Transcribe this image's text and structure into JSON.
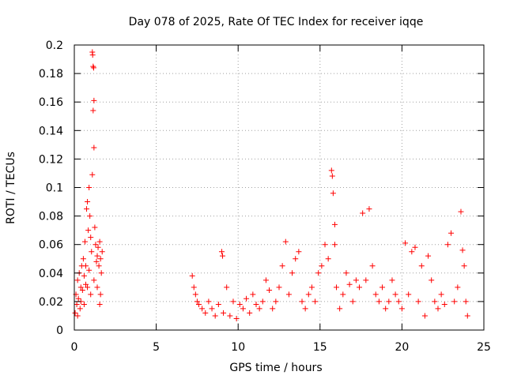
{
  "chart_data": {
    "type": "scatter",
    "title": "Day 078 of 2025, Rate Of TEC Index for receiver iqqe",
    "xlabel": "GPS time / hours",
    "ylabel": "ROTI / TECUs",
    "xlim": [
      0,
      25
    ],
    "ylim": [
      0,
      0.2
    ],
    "x_ticks": [
      "0",
      "5",
      "10",
      "15",
      "20",
      "25"
    ],
    "y_ticks": [
      "0",
      "0.02",
      "0.04",
      "0.06",
      "0.08",
      "0.1",
      "0.12",
      "0.14",
      "0.16",
      "0.18",
      "0.2"
    ],
    "grid": true,
    "marker": "plus",
    "color": "#ff0000",
    "series": [
      {
        "points": [
          [
            0.05,
            0.012
          ],
          [
            0.1,
            0.025
          ],
          [
            0.15,
            0.018
          ],
          [
            0.2,
            0.035
          ],
          [
            0.25,
            0.022
          ],
          [
            0.3,
            0.04
          ],
          [
            0.35,
            0.015
          ],
          [
            0.4,
            0.03
          ],
          [
            0.45,
            0.045
          ],
          [
            0.5,
            0.028
          ],
          [
            0.55,
            0.05
          ],
          [
            0.6,
            0.038
          ],
          [
            0.65,
            0.062
          ],
          [
            0.7,
            0.045
          ],
          [
            0.75,
            0.085
          ],
          [
            0.8,
            0.09
          ],
          [
            0.85,
            0.07
          ],
          [
            0.9,
            0.1
          ],
          [
            0.95,
            0.08
          ],
          [
            1.0,
            0.065
          ],
          [
            1.05,
            0.055
          ],
          [
            1.1,
            0.195
          ],
          [
            1.12,
            0.193
          ],
          [
            1.15,
            0.185
          ],
          [
            1.18,
            0.184
          ],
          [
            1.2,
            0.161
          ],
          [
            1.15,
            0.154
          ],
          [
            1.2,
            0.128
          ],
          [
            1.1,
            0.109
          ],
          [
            1.25,
            0.072
          ],
          [
            1.3,
            0.06
          ],
          [
            1.35,
            0.048
          ],
          [
            1.4,
            0.052
          ],
          [
            1.45,
            0.058
          ],
          [
            1.5,
            0.045
          ],
          [
            1.55,
            0.062
          ],
          [
            1.6,
            0.05
          ],
          [
            1.65,
            0.04
          ],
          [
            1.7,
            0.055
          ],
          [
            1.55,
            0.018
          ],
          [
            0.2,
            0.01
          ],
          [
            0.4,
            0.02
          ],
          [
            0.6,
            0.018
          ],
          [
            0.8,
            0.03
          ],
          [
            1.0,
            0.025
          ],
          [
            1.2,
            0.035
          ],
          [
            1.4,
            0.03
          ],
          [
            1.6,
            0.025
          ],
          [
            0.9,
            0.042
          ],
          [
            0.7,
            0.032
          ],
          [
            7.2,
            0.038
          ],
          [
            7.3,
            0.03
          ],
          [
            7.4,
            0.025
          ],
          [
            7.5,
            0.02
          ],
          [
            7.6,
            0.018
          ],
          [
            7.8,
            0.015
          ],
          [
            8.0,
            0.012
          ],
          [
            8.2,
            0.02
          ],
          [
            8.4,
            0.015
          ],
          [
            8.6,
            0.01
          ],
          [
            8.8,
            0.018
          ],
          [
            9.0,
            0.055
          ],
          [
            9.05,
            0.052
          ],
          [
            9.1,
            0.012
          ],
          [
            9.3,
            0.03
          ],
          [
            9.5,
            0.01
          ],
          [
            9.7,
            0.02
          ],
          [
            9.9,
            0.008
          ],
          [
            10.1,
            0.018
          ],
          [
            10.3,
            0.015
          ],
          [
            10.5,
            0.022
          ],
          [
            10.7,
            0.012
          ],
          [
            10.9,
            0.025
          ],
          [
            11.1,
            0.018
          ],
          [
            11.3,
            0.015
          ],
          [
            11.5,
            0.02
          ],
          [
            11.7,
            0.035
          ],
          [
            11.9,
            0.028
          ],
          [
            12.1,
            0.015
          ],
          [
            12.3,
            0.02
          ],
          [
            12.5,
            0.03
          ],
          [
            12.7,
            0.045
          ],
          [
            12.9,
            0.062
          ],
          [
            13.1,
            0.025
          ],
          [
            13.3,
            0.04
          ],
          [
            13.5,
            0.05
          ],
          [
            13.7,
            0.055
          ],
          [
            13.9,
            0.02
          ],
          [
            14.1,
            0.015
          ],
          [
            14.3,
            0.025
          ],
          [
            14.5,
            0.03
          ],
          [
            14.7,
            0.02
          ],
          [
            14.9,
            0.04
          ],
          [
            15.1,
            0.045
          ],
          [
            15.3,
            0.06
          ],
          [
            15.5,
            0.05
          ],
          [
            15.7,
            0.112
          ],
          [
            15.75,
            0.108
          ],
          [
            15.8,
            0.096
          ],
          [
            15.9,
            0.074
          ],
          [
            15.9,
            0.06
          ],
          [
            16.0,
            0.03
          ],
          [
            16.2,
            0.015
          ],
          [
            16.4,
            0.025
          ],
          [
            16.6,
            0.04
          ],
          [
            16.8,
            0.032
          ],
          [
            17.0,
            0.02
          ],
          [
            17.2,
            0.035
          ],
          [
            17.4,
            0.03
          ],
          [
            17.6,
            0.082
          ],
          [
            17.8,
            0.035
          ],
          [
            18.0,
            0.085
          ],
          [
            18.2,
            0.045
          ],
          [
            18.4,
            0.025
          ],
          [
            18.6,
            0.02
          ],
          [
            18.8,
            0.03
          ],
          [
            19.0,
            0.015
          ],
          [
            19.2,
            0.02
          ],
          [
            19.4,
            0.035
          ],
          [
            19.6,
            0.025
          ],
          [
            19.8,
            0.02
          ],
          [
            20.0,
            0.015
          ],
          [
            20.2,
            0.061
          ],
          [
            20.4,
            0.025
          ],
          [
            20.6,
            0.055
          ],
          [
            20.8,
            0.058
          ],
          [
            21.0,
            0.02
          ],
          [
            21.2,
            0.045
          ],
          [
            21.4,
            0.01
          ],
          [
            21.6,
            0.052
          ],
          [
            21.8,
            0.035
          ],
          [
            22.0,
            0.02
          ],
          [
            22.2,
            0.015
          ],
          [
            22.4,
            0.025
          ],
          [
            22.6,
            0.018
          ],
          [
            22.8,
            0.06
          ],
          [
            23.0,
            0.068
          ],
          [
            23.2,
            0.02
          ],
          [
            23.4,
            0.03
          ],
          [
            23.6,
            0.083
          ],
          [
            23.7,
            0.056
          ],
          [
            23.8,
            0.045
          ],
          [
            23.9,
            0.02
          ],
          [
            24.0,
            0.01
          ]
        ]
      }
    ]
  }
}
